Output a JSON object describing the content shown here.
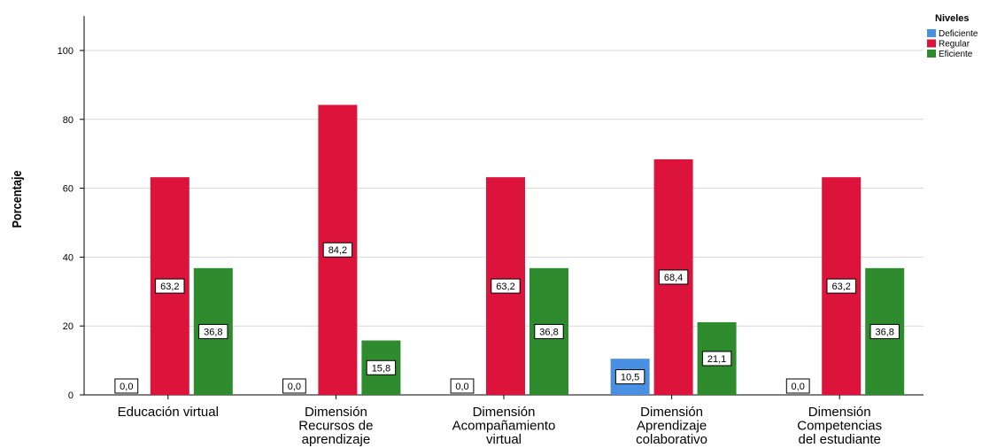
{
  "chart_data": {
    "type": "bar",
    "title": "",
    "xlabel": "",
    "ylabel": "Porcentaje",
    "ylim": [
      0,
      110
    ],
    "yticks": [
      0,
      20,
      40,
      60,
      80,
      100
    ],
    "grid": true,
    "legend_placement": "top-right",
    "legend_title": "Niveles",
    "categories": [
      [
        "Educación virtual"
      ],
      [
        "Dimensión",
        "Recursos de",
        "aprendizaje"
      ],
      [
        "Dimensión",
        "Acompañamiento",
        "virtual"
      ],
      [
        "Dimensión",
        "Aprendizaje",
        "colaborativo"
      ],
      [
        "Dimensión",
        "Competencias",
        "del estudiante"
      ]
    ],
    "series": [
      {
        "name": "Deficiente",
        "color": "#4a90e2",
        "values": [
          0.0,
          0.0,
          0.0,
          10.5,
          0.0
        ],
        "labels": [
          "0,0",
          "0,0",
          "0,0",
          "10,5",
          "0,0"
        ]
      },
      {
        "name": "Regular",
        "color": "#dc143c",
        "values": [
          63.2,
          84.2,
          63.2,
          68.4,
          63.2
        ],
        "labels": [
          "63,2",
          "84,2",
          "63,2",
          "68,4",
          "63,2"
        ]
      },
      {
        "name": "Eficiente",
        "color": "#2e8b2e",
        "values": [
          36.8,
          15.8,
          36.8,
          21.1,
          36.8
        ],
        "labels": [
          "36,8",
          "15,8",
          "36,8",
          "21,1",
          "36,8"
        ]
      }
    ]
  }
}
